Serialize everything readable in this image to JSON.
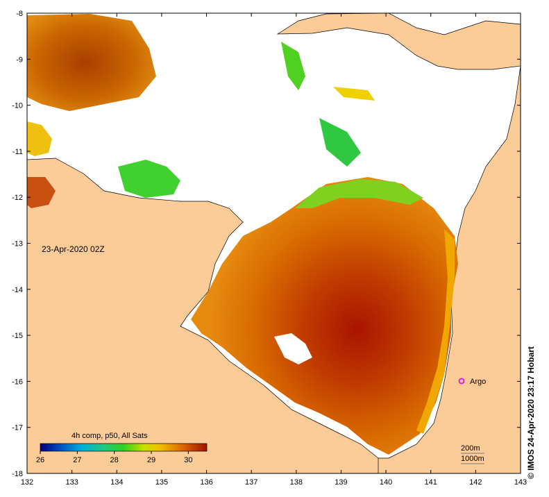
{
  "map": {
    "date_label": "23-Apr-2020 02Z",
    "credit": "© IMOS 24-Apr-2020 23:17 Hobart",
    "lon_ticks": [
      "132",
      "133",
      "134",
      "135",
      "136",
      "137",
      "138",
      "139",
      "140",
      "141",
      "142",
      "143"
    ],
    "lat_ticks": [
      "-8",
      "-9",
      "-10",
      "-11",
      "-12",
      "-13",
      "-14",
      "-15",
      "-16",
      "-17",
      "-18"
    ],
    "argo_label": "Argo",
    "depth_contours": [
      "200m",
      "1000m"
    ],
    "colors": {
      "land": "#fbcb98",
      "no_data": "#ffffff",
      "argo_marker": "#e020e0"
    }
  },
  "colorbar": {
    "title": "4h comp, p50, All Sats",
    "ticks": [
      "26",
      "27",
      "28",
      "29",
      "30"
    ],
    "unit_min": 26,
    "unit_max": 30.5
  }
}
